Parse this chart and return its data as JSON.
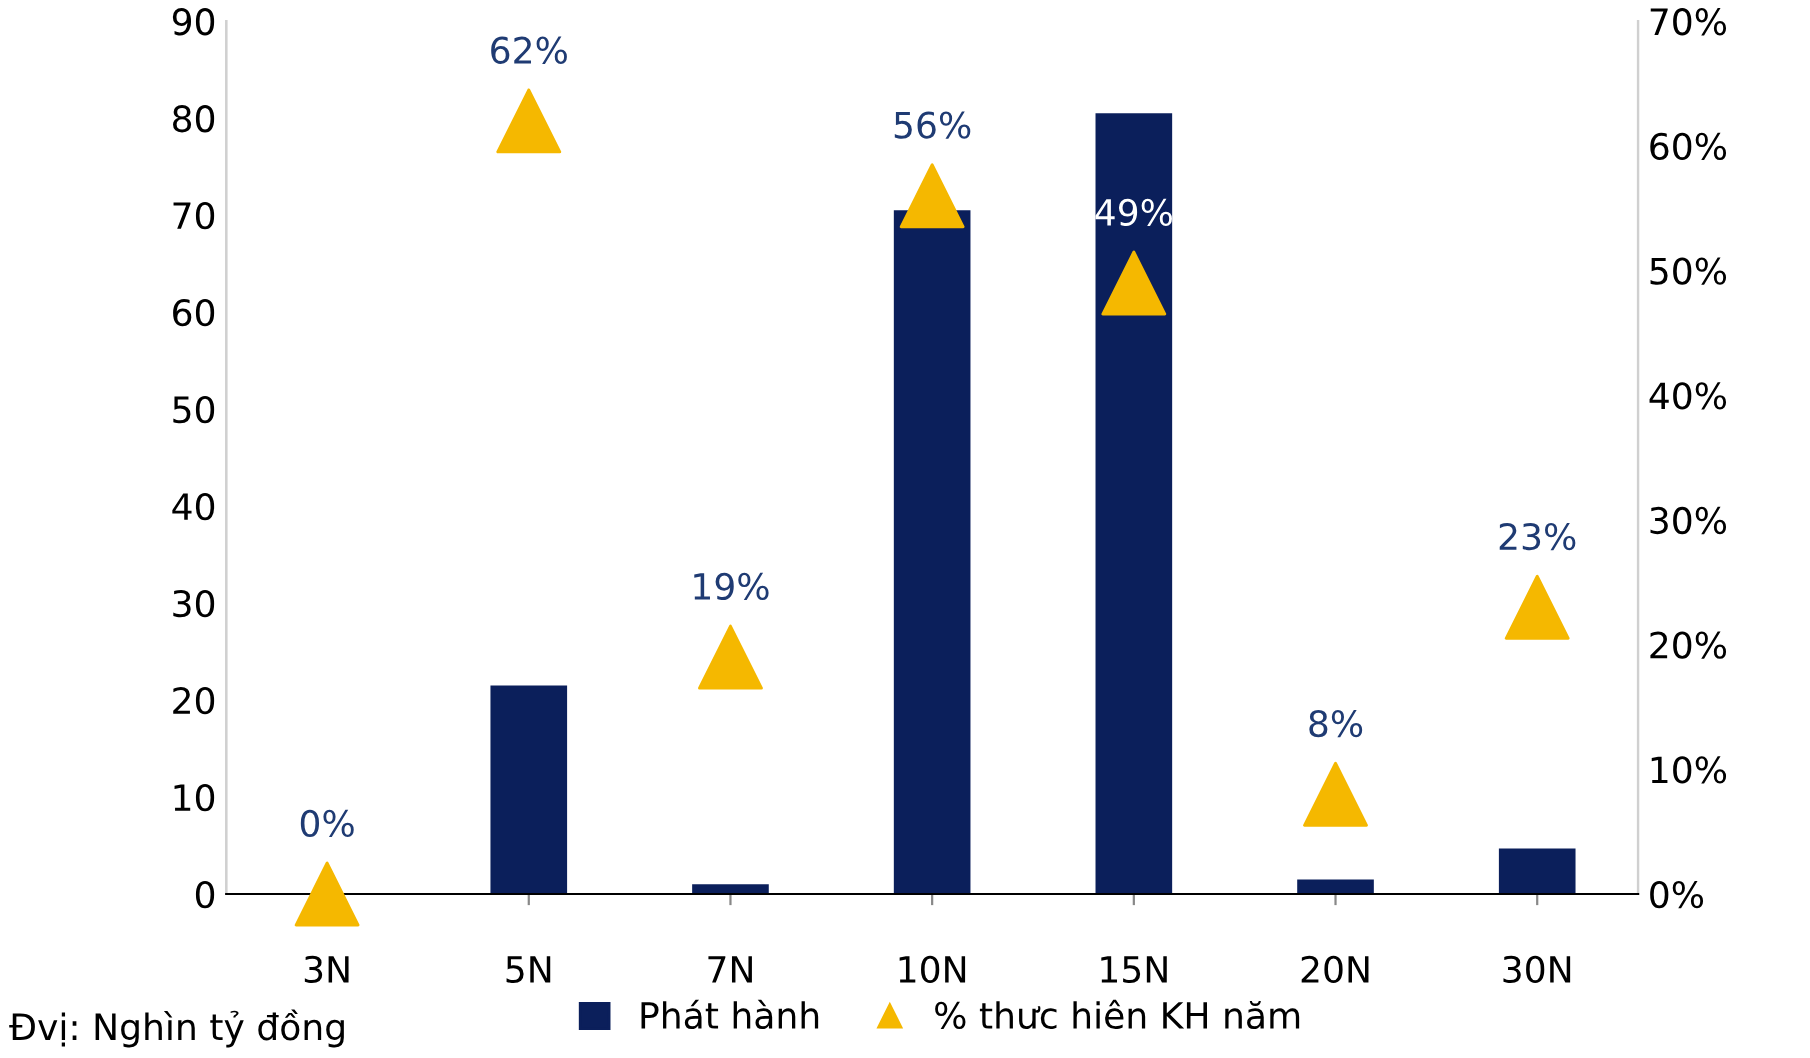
{
  "chart_data": {
    "type": "bar",
    "categories": [
      "3N",
      "5N",
      "7N",
      "10N",
      "15N",
      "20N",
      "30N"
    ],
    "series": [
      {
        "name": "Phát hành",
        "color": "#0b1f5b",
        "values": [
          0,
          21.5,
          1,
          70.5,
          80.5,
          1.5,
          4.7
        ]
      },
      {
        "name": "% thưc hiên KH năm",
        "type": "scatter",
        "axis": "y2",
        "color": "#f5b800",
        "marker": "triangle",
        "values": [
          0,
          62,
          19,
          56,
          49,
          8,
          23
        ],
        "value_labels": [
          "0%",
          "62%",
          "19%",
          "56%",
          "49%",
          "8%",
          "23%"
        ]
      }
    ],
    "ylim": [
      0,
      90
    ],
    "yticks": [
      0,
      10,
      20,
      30,
      40,
      50,
      60,
      70,
      80,
      90
    ],
    "y2lim": [
      0,
      70
    ],
    "y2ticks": [
      {
        "value": 0,
        "label": "0%"
      },
      {
        "value": 10,
        "label": "10%"
      },
      {
        "value": 20,
        "label": "20%"
      },
      {
        "value": 30,
        "label": "30%"
      },
      {
        "value": 40,
        "label": "40%"
      },
      {
        "value": 50,
        "label": "50%"
      },
      {
        "value": 60,
        "label": "60%"
      },
      {
        "value": 70,
        "label": "70%"
      }
    ],
    "grid": false,
    "legend": "bottom",
    "annotations": [
      "Đvị: Nghìn tỷ đồng"
    ]
  }
}
